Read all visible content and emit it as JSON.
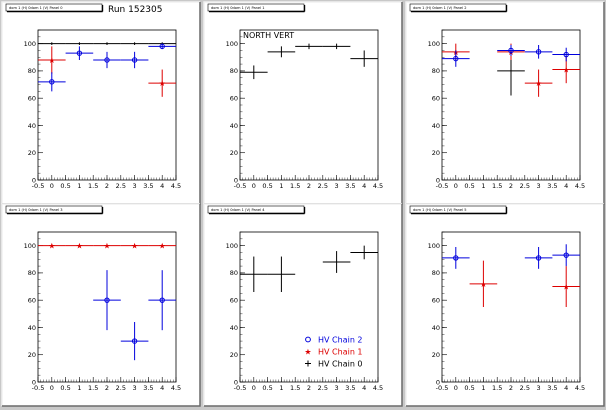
{
  "run_label": "Run 152305",
  "colors": {
    "chain0": "#000000",
    "chain1": "#dd0000",
    "chain2": "#0000dd"
  },
  "legend": [
    {
      "name": "HV Chain 2",
      "color": "#0000dd",
      "marker": "circle"
    },
    {
      "name": "HV Chain 1",
      "color": "#dd0000",
      "marker": "star"
    },
    {
      "name": "HV Chain 0",
      "color": "#000000",
      "marker": "cross"
    }
  ],
  "chart_data": [
    {
      "type": "scatter",
      "title": "dom 1 (H) 0dom 1 (V) Panel 0",
      "xlim": [
        -0.5,
        4.5
      ],
      "ylim": [
        0,
        110
      ],
      "x_ticks": [
        -0.5,
        0,
        0.5,
        1,
        1.5,
        2,
        2.5,
        3,
        3.5,
        4,
        4.5
      ],
      "y_ticks": [
        0,
        20,
        40,
        60,
        80,
        100
      ],
      "annotation": "",
      "series": [
        {
          "chain": 0,
          "points": [
            {
              "x": 0,
              "y": 100,
              "xerr": 0.5,
              "yerr": 1
            },
            {
              "x": 1,
              "y": 100,
              "xerr": 0.5,
              "yerr": 1
            },
            {
              "x": 2,
              "y": 100,
              "xerr": 0.5,
              "yerr": 1
            },
            {
              "x": 3,
              "y": 100,
              "xerr": 0.5,
              "yerr": 1
            },
            {
              "x": 4,
              "y": 100,
              "xerr": 0.5,
              "yerr": 1
            }
          ]
        },
        {
          "chain": 1,
          "points": [
            {
              "x": 0,
              "y": 88,
              "xerr": 0.5,
              "yerr": 10
            },
            {
              "x": 4,
              "y": 71,
              "xerr": 0.5,
              "yerr": 10
            }
          ]
        },
        {
          "chain": 2,
          "points": [
            {
              "x": 0,
              "y": 72,
              "xerr": 0.5,
              "yerr": 7
            },
            {
              "x": 1,
              "y": 93,
              "xerr": 0.5,
              "yerr": 5
            },
            {
              "x": 2,
              "y": 88,
              "xerr": 0.5,
              "yerr": 6
            },
            {
              "x": 3,
              "y": 88,
              "xerr": 0.5,
              "yerr": 6
            },
            {
              "x": 4,
              "y": 98,
              "xerr": 0.5,
              "yerr": 2
            }
          ]
        }
      ]
    },
    {
      "type": "scatter",
      "title": "dom 1 (H) 0dom 1 (V) Panel 1",
      "xlim": [
        -0.5,
        4.5
      ],
      "ylim": [
        0,
        110
      ],
      "x_ticks": [
        -0.5,
        0,
        0.5,
        1,
        1.5,
        2,
        2.5,
        3,
        3.5,
        4,
        4.5
      ],
      "y_ticks": [
        0,
        20,
        40,
        60,
        80,
        100
      ],
      "annotation": "NORTH VERT",
      "series": [
        {
          "chain": 0,
          "points": [
            {
              "x": 0,
              "y": 79,
              "xerr": 0.5,
              "yerr": 5
            },
            {
              "x": 1,
              "y": 94,
              "xerr": 0.5,
              "yerr": 4
            },
            {
              "x": 2,
              "y": 98,
              "xerr": 0.5,
              "yerr": 2
            },
            {
              "x": 3,
              "y": 98,
              "xerr": 0.5,
              "yerr": 2
            },
            {
              "x": 4,
              "y": 89,
              "xerr": 0.5,
              "yerr": 6
            }
          ]
        }
      ]
    },
    {
      "type": "scatter",
      "title": "dom 1 (H) 0dom 1 (V) Panel 2",
      "xlim": [
        -0.5,
        4.5
      ],
      "ylim": [
        0,
        110
      ],
      "x_ticks": [
        -0.5,
        0,
        0.5,
        1,
        1.5,
        2,
        2.5,
        3,
        3.5,
        4,
        4.5
      ],
      "y_ticks": [
        0,
        20,
        40,
        60,
        80,
        100
      ],
      "annotation": "",
      "series": [
        {
          "chain": 0,
          "points": [
            {
              "x": 2,
              "y": 80,
              "xerr": 0.5,
              "yerr": 18
            }
          ]
        },
        {
          "chain": 1,
          "points": [
            {
              "x": 0,
              "y": 94,
              "xerr": 0.5,
              "yerr": 6
            },
            {
              "x": 2,
              "y": 94,
              "xerr": 0.5,
              "yerr": 6
            },
            {
              "x": 3,
              "y": 71,
              "xerr": 0.5,
              "yerr": 10
            },
            {
              "x": 4,
              "y": 81,
              "xerr": 0.5,
              "yerr": 10
            }
          ]
        },
        {
          "chain": 2,
          "points": [
            {
              "x": 0,
              "y": 89,
              "xerr": 0.5,
              "yerr": 6
            },
            {
              "x": 2,
              "y": 95,
              "xerr": 0.5,
              "yerr": 4
            },
            {
              "x": 3,
              "y": 94,
              "xerr": 0.5,
              "yerr": 5
            },
            {
              "x": 4,
              "y": 92,
              "xerr": 0.5,
              "yerr": 5
            }
          ]
        }
      ]
    },
    {
      "type": "scatter",
      "title": "dom 1 (H) 0dom 1 (V) Panel 3",
      "xlim": [
        -0.5,
        4.5
      ],
      "ylim": [
        0,
        110
      ],
      "x_ticks": [
        -0.5,
        0,
        0.5,
        1,
        1.5,
        2,
        2.5,
        3,
        3.5,
        4,
        4.5
      ],
      "y_ticks": [
        0,
        20,
        40,
        60,
        80,
        100
      ],
      "annotation": "",
      "series": [
        {
          "chain": 1,
          "points": [
            {
              "x": 0,
              "y": 100,
              "xerr": 0.5,
              "yerr": 1
            },
            {
              "x": 1,
              "y": 100,
              "xerr": 0.5,
              "yerr": 1
            },
            {
              "x": 2,
              "y": 100,
              "xerr": 0.5,
              "yerr": 1
            },
            {
              "x": 3,
              "y": 100,
              "xerr": 0.5,
              "yerr": 1
            },
            {
              "x": 4,
              "y": 100,
              "xerr": 0.5,
              "yerr": 1
            }
          ]
        },
        {
          "chain": 2,
          "points": [
            {
              "x": 2,
              "y": 60,
              "xerr": 0.5,
              "yerr": 22
            },
            {
              "x": 3,
              "y": 30,
              "xerr": 0.5,
              "yerr": 14
            },
            {
              "x": 4,
              "y": 60,
              "xerr": 0.5,
              "yerr": 22
            }
          ]
        }
      ]
    },
    {
      "type": "scatter",
      "title": "dom 1 (H) 0dom 1 (V) Panel 4",
      "xlim": [
        -0.5,
        4.5
      ],
      "ylim": [
        0,
        110
      ],
      "x_ticks": [
        -0.5,
        0,
        0.5,
        1,
        1.5,
        2,
        2.5,
        3,
        3.5,
        4,
        4.5
      ],
      "y_ticks": [
        0,
        20,
        40,
        60,
        80,
        100
      ],
      "annotation": "",
      "series": [
        {
          "chain": 0,
          "points": [
            {
              "x": 0,
              "y": 79,
              "xerr": 0.5,
              "yerr": 13
            },
            {
              "x": 1,
              "y": 79,
              "xerr": 0.5,
              "yerr": 13
            },
            {
              "x": 3,
              "y": 88,
              "xerr": 0.5,
              "yerr": 8
            },
            {
              "x": 4,
              "y": 95,
              "xerr": 0.5,
              "yerr": 5
            }
          ]
        }
      ]
    },
    {
      "type": "scatter",
      "title": "dom 1 (H) 0dom 1 (V) Panel 5",
      "xlim": [
        -0.5,
        4.5
      ],
      "ylim": [
        0,
        110
      ],
      "x_ticks": [
        -0.5,
        0,
        0.5,
        1,
        1.5,
        2,
        2.5,
        3,
        3.5,
        4,
        4.5
      ],
      "y_ticks": [
        0,
        20,
        40,
        60,
        80,
        100
      ],
      "annotation": "",
      "series": [
        {
          "chain": 1,
          "points": [
            {
              "x": 1,
              "y": 72,
              "xerr": 0.5,
              "yerr": 17
            },
            {
              "x": 4,
              "y": 70,
              "xerr": 0.5,
              "yerr": 15
            }
          ]
        },
        {
          "chain": 2,
          "points": [
            {
              "x": 0,
              "y": 91,
              "xerr": 0.5,
              "yerr": 8
            },
            {
              "x": 3,
              "y": 91,
              "xerr": 0.5,
              "yerr": 8
            },
            {
              "x": 4,
              "y": 93,
              "xerr": 0.5,
              "yerr": 8
            }
          ]
        }
      ]
    }
  ]
}
